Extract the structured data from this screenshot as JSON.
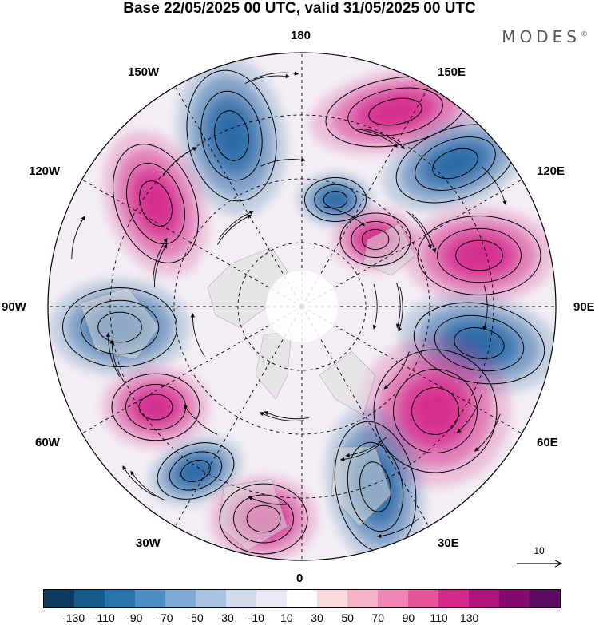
{
  "title": "Base 22/05/2025 00 UTC, valid 31/05/2025 00 UTC",
  "brand": {
    "name": "MODES",
    "mark": "®"
  },
  "map": {
    "projection": "north-polar-stereographic",
    "longitude_labels": {
      "top": "180",
      "top_right": "150E",
      "right_upper": "120E",
      "right": "90E",
      "right_lower": "60E",
      "bottom_right": "30E",
      "bottom": "0",
      "bottom_left": "30W",
      "left_lower": "60W",
      "left": "90W",
      "left_upper": "120W",
      "top_left": "150W"
    },
    "gridlines": "dashed",
    "field": "shaded anomaly with streamlines",
    "colors": {
      "negative": "#2a6aa6",
      "positive": "#d42a8c",
      "land": "#dcdcdc"
    }
  },
  "vector_reference": {
    "label": "10"
  },
  "colorbar": {
    "ticks": [
      "-130",
      "-110",
      "-90",
      "-70",
      "-50",
      "-30",
      "-10",
      "10",
      "30",
      "50",
      "70",
      "90",
      "110",
      "130"
    ],
    "colors": [
      "#0e3a5c",
      "#155a8a",
      "#2a74ad",
      "#4d8fc3",
      "#7ea9d4",
      "#a9c1e2",
      "#d2daee",
      "#eae8f3",
      "#ffffff",
      "#f9dada",
      "#f5b3c7",
      "#ef85b4",
      "#e6559c",
      "#d42a8c",
      "#b0137b",
      "#860a6e",
      "#5a0a62"
    ]
  }
}
